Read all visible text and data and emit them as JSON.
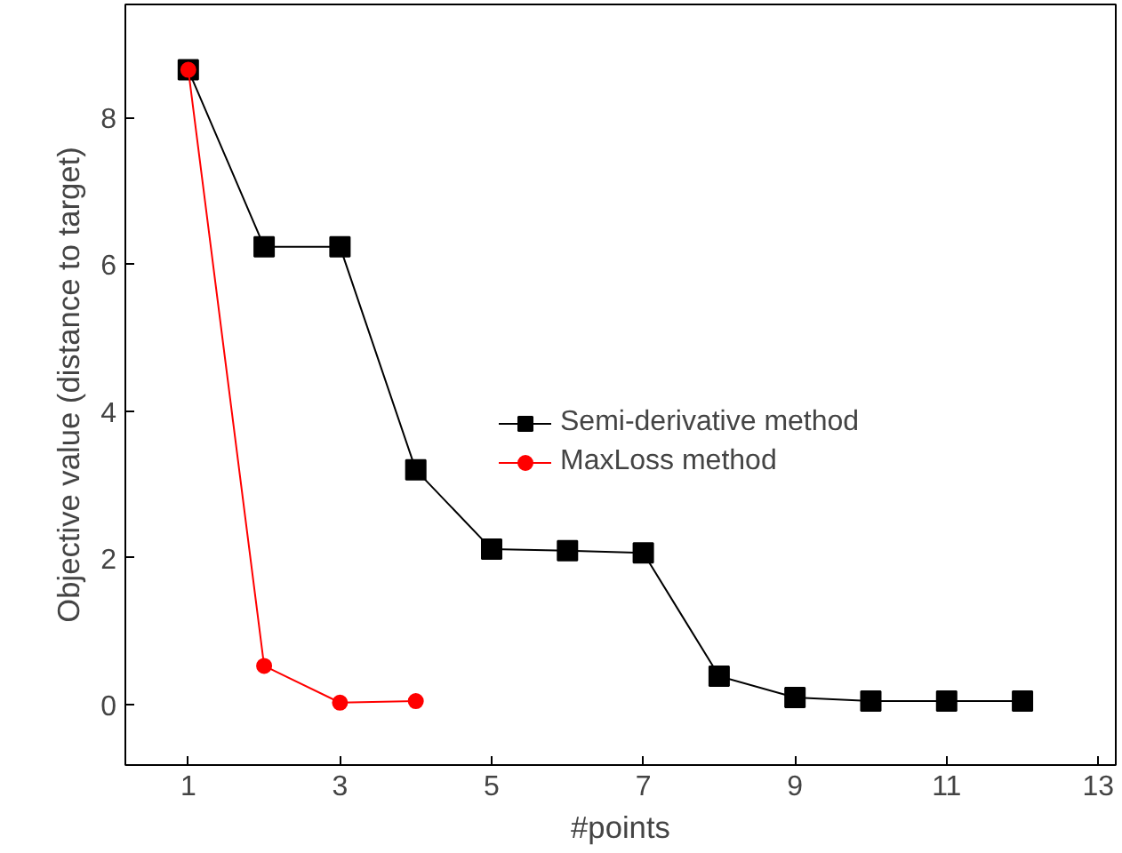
{
  "chart_data": {
    "type": "line",
    "xlabel": "#points",
    "ylabel": "Objective value (distance to target)",
    "xlim": [
      0.17,
      13.23
    ],
    "ylim": [
      -0.82,
      9.54
    ],
    "xticks": [
      1,
      3,
      5,
      7,
      9,
      11,
      13
    ],
    "yticks": [
      0,
      2,
      4,
      6,
      8
    ],
    "grid": false,
    "legend": "right",
    "line_style": "solid",
    "series": [
      {
        "name": "Semi-derivative method",
        "color": "#000000",
        "marker": "square",
        "x": [
          1,
          2,
          3,
          4,
          5,
          6,
          7,
          8,
          9,
          10,
          11,
          12
        ],
        "values": [
          8.65,
          6.24,
          6.24,
          3.2,
          2.12,
          2.1,
          2.07,
          0.39,
          0.1,
          0.05,
          0.05,
          0.05
        ]
      },
      {
        "name": "MaxLoss method",
        "color": "#ff0000",
        "marker": "circle",
        "x": [
          1,
          2,
          3,
          4
        ],
        "values": [
          8.65,
          0.53,
          0.03,
          0.05
        ]
      }
    ]
  }
}
